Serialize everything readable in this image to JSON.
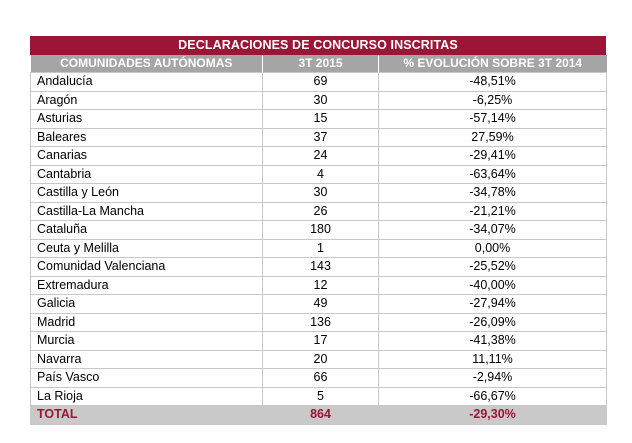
{
  "title": "DECLARACIONES DE CONCURSO INSCRITAS",
  "headers": [
    "COMUNIDADES AUTÓNOMAS",
    "3T 2015",
    "% EVOLUCIÓN SOBRE 3T 2014"
  ],
  "rows": [
    {
      "region": "Andalucía",
      "count": "69",
      "evolution": "-48,51%"
    },
    {
      "region": "Aragón",
      "count": "30",
      "evolution": "-6,25%"
    },
    {
      "region": "Asturias",
      "count": "15",
      "evolution": "-57,14%"
    },
    {
      "region": "Baleares",
      "count": "37",
      "evolution": "27,59%"
    },
    {
      "region": "Canarias",
      "count": "24",
      "evolution": "-29,41%"
    },
    {
      "region": "Cantabria",
      "count": "4",
      "evolution": "-63,64%"
    },
    {
      "region": "Castilla y León",
      "count": "30",
      "evolution": "-34,78%"
    },
    {
      "region": "Castilla-La Mancha",
      "count": "26",
      "evolution": "-21,21%"
    },
    {
      "region": "Cataluña",
      "count": "180",
      "evolution": "-34,07%"
    },
    {
      "region": "Ceuta y Melilla",
      "count": "1",
      "evolution": "0,00%"
    },
    {
      "region": "Comunidad Valenciana",
      "count": "143",
      "evolution": "-25,52%"
    },
    {
      "region": "Extremadura",
      "count": "12",
      "evolution": "-40,00%"
    },
    {
      "region": "Galicia",
      "count": "49",
      "evolution": "-27,94%"
    },
    {
      "region": "Madrid",
      "count": "136",
      "evolution": "-26,09%"
    },
    {
      "region": "Murcia",
      "count": "17",
      "evolution": "-41,38%"
    },
    {
      "region": "Navarra",
      "count": "20",
      "evolution": "11,11%"
    },
    {
      "region": "País Vasco",
      "count": "66",
      "evolution": "-2,94%"
    },
    {
      "region": "La Rioja",
      "count": "5",
      "evolution": "-66,67%"
    }
  ],
  "total": {
    "region": "TOTAL",
    "count": "864",
    "evolution": "-29,30%"
  },
  "colors": {
    "accent": "#9b1537",
    "header_bg": "#a5a5a5",
    "total_bg": "#c9c9c9"
  }
}
